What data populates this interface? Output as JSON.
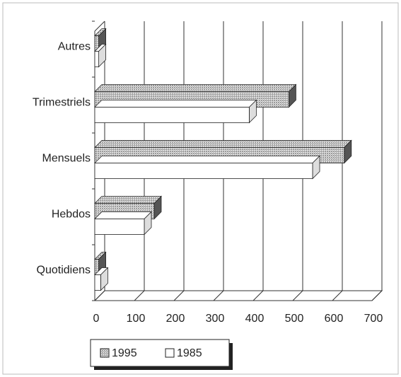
{
  "chart_data": {
    "type": "bar3d_horizontal",
    "categories": [
      "Quotidiens",
      "Hebdos",
      "Mensuels",
      "Trimestriels",
      "Autres"
    ],
    "series": [
      {
        "name": "1995",
        "color": "#9a9a9a",
        "values": [
          10,
          150,
          630,
          490,
          10
        ]
      },
      {
        "name": "1985",
        "color": "#ffffff",
        "values": [
          15,
          125,
          550,
          390,
          10
        ]
      }
    ],
    "xlim": [
      0,
      700
    ],
    "xticks": [
      0,
      100,
      200,
      300,
      400,
      500,
      600,
      700
    ],
    "grid": true,
    "legend": "bottom"
  }
}
